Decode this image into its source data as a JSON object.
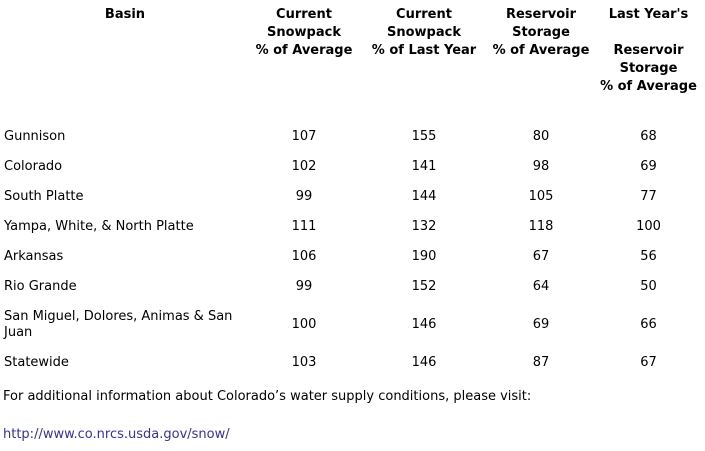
{
  "table": {
    "headers": {
      "basin": "Basin",
      "current_snowpack_avg": "Current\nSnowpack\n% of Average",
      "current_snowpack_last_year": "Current\nSnowpack\n% of Last Year",
      "reservoir_storage_avg": "Reservoir\nStorage\n% of Average",
      "last_year_reservoir_storage_avg": "Last Year's\n\nReservoir\nStorage\n% of Average"
    },
    "rows": [
      {
        "basin": "Gunnison",
        "values": [
          "107",
          "155",
          "80",
          "68"
        ]
      },
      {
        "basin": "Colorado",
        "values": [
          "102",
          "141",
          "98",
          "69"
        ]
      },
      {
        "basin": "South Platte",
        "values": [
          "99",
          "144",
          "105",
          "77"
        ]
      },
      {
        "basin": "Yampa, White, & North Platte",
        "values": [
          "111",
          "132",
          "118",
          "100"
        ]
      },
      {
        "basin": "Arkansas",
        "values": [
          "106",
          "190",
          "67",
          "56"
        ]
      },
      {
        "basin": "Rio Grande",
        "values": [
          "99",
          "152",
          "64",
          "50"
        ]
      },
      {
        "basin": "San Miguel, Dolores, Animas & San Juan",
        "values": [
          "100",
          "146",
          "69",
          "66"
        ]
      },
      {
        "basin": "Statewide",
        "values": [
          "103",
          "146",
          "87",
          "67"
        ]
      }
    ]
  },
  "footer": {
    "note": "For additional information about Colorado’s water supply conditions, please visit:",
    "link": "http://www.co.nrcs.usda.gov/snow/",
    "link_color": "#333399"
  }
}
